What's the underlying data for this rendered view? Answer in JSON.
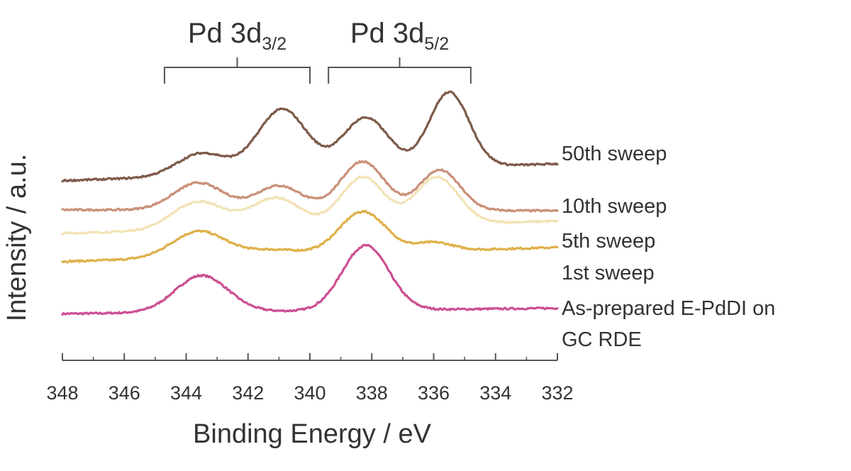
{
  "chart_data": {
    "type": "line",
    "xlabel": "Binding Energy / eV",
    "ylabel": "Intensity / a.u.",
    "xlim": [
      348,
      332
    ],
    "x_reversed": true,
    "xticks": [
      348,
      346,
      344,
      342,
      340,
      338,
      336,
      334,
      332
    ],
    "y_ticks_shown": false,
    "grid": false,
    "annotations": [
      {
        "text": "Pd 3d",
        "sub": "3/2",
        "range": [
          344.7,
          340.0
        ]
      },
      {
        "text": "Pd 3d",
        "sub": "5/2",
        "range": [
          339.4,
          334.8
        ]
      }
    ],
    "series": [
      {
        "name": "As-prepared E-PdDI on GC RDE",
        "label_lines": [
          "As-prepared E-PdDI on",
          "GC RDE"
        ],
        "color": "#cc4f92",
        "offset": 0.0,
        "baseline": [
          1.12,
          1.42
        ],
        "peaks": [
          {
            "center": 343.5,
            "height": 1.95,
            "width": 0.85
          },
          {
            "center": 338.2,
            "height": 3.45,
            "width": 0.75
          }
        ]
      },
      {
        "name": "1st sweep",
        "label_lines": [
          "1st sweep"
        ],
        "color": "#dfb048",
        "offset": 2.7,
        "baseline": [
          1.2,
          1.95
        ],
        "peaks": [
          {
            "center": 343.6,
            "height": 1.4,
            "width": 0.85
          },
          {
            "center": 341.2,
            "height": 0.3,
            "width": 0.9
          },
          {
            "center": 338.3,
            "height": 2.2,
            "width": 0.75
          },
          {
            "center": 336.0,
            "height": 0.45,
            "width": 0.6
          }
        ]
      },
      {
        "name": "5th sweep",
        "label_lines": [
          "5th sweep"
        ],
        "color": "#f2e3b6",
        "offset": 3.9,
        "baseline": [
          1.5,
          2.15
        ],
        "peaks": [
          {
            "center": 343.6,
            "height": 1.5,
            "width": 0.85
          },
          {
            "center": 341.1,
            "height": 1.6,
            "width": 0.8
          },
          {
            "center": 338.3,
            "height": 2.6,
            "width": 0.7
          },
          {
            "center": 335.9,
            "height": 2.5,
            "width": 0.7
          }
        ]
      },
      {
        "name": "10th sweep",
        "label_lines": [
          "10th sweep"
        ],
        "color": "#c99078",
        "offset": 5.4,
        "baseline": [
          1.25,
          1.2
        ],
        "peaks": [
          {
            "center": 343.6,
            "height": 1.45,
            "width": 0.8
          },
          {
            "center": 341.0,
            "height": 1.3,
            "width": 0.75
          },
          {
            "center": 338.3,
            "height": 2.6,
            "width": 0.7
          },
          {
            "center": 335.8,
            "height": 2.15,
            "width": 0.65
          }
        ]
      },
      {
        "name": "50th sweep",
        "label_lines": [
          "50th sweep"
        ],
        "color": "#7d5a4a",
        "offset": 6.9,
        "baseline": [
          1.3,
          2.2
        ],
        "peaks": [
          {
            "center": 343.5,
            "height": 1.2,
            "width": 0.8
          },
          {
            "center": 340.9,
            "height": 3.4,
            "width": 0.8
          },
          {
            "center": 338.2,
            "height": 2.8,
            "width": 0.75
          },
          {
            "center": 335.5,
            "height": 4.0,
            "width": 0.65
          }
        ]
      }
    ]
  }
}
